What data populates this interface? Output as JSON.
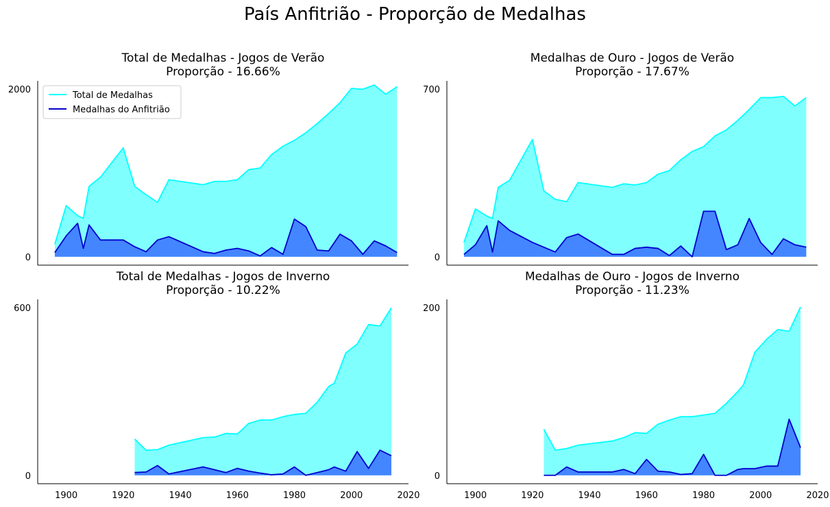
{
  "figure": {
    "title": "País Anfitrião - Proporção de Medalhas",
    "colors": {
      "total_line": "#00ffff",
      "total_fill": "#80ffff",
      "host_line": "#0000cc",
      "host_fill": "#4080ff"
    }
  },
  "chart_data": [
    {
      "type": "area",
      "title": "Total de Medalhas - Jogos de Verão",
      "subtitle": "Proporção - 16.66%",
      "xlim": [
        1890,
        2020
      ],
      "ylim": [
        -100,
        2100
      ],
      "yticks": [
        0,
        2000
      ],
      "show_xticks": false,
      "legend": {
        "placement": "top-left",
        "entries": [
          "Total de Medalhas",
          "Medalhas do Anfitrião"
        ]
      },
      "series": [
        {
          "name": "Total de Medalhas",
          "x": [
            1896,
            1900,
            1904,
            1906,
            1908,
            1912,
            1920,
            1924,
            1928,
            1932,
            1936,
            1948,
            1952,
            1956,
            1960,
            1964,
            1968,
            1972,
            1976,
            1980,
            1984,
            1988,
            1992,
            1996,
            2000,
            2004,
            2008,
            2012,
            2016
          ],
          "values": [
            150,
            610,
            490,
            460,
            840,
            950,
            1300,
            840,
            740,
            650,
            920,
            860,
            900,
            900,
            920,
            1040,
            1060,
            1220,
            1320,
            1390,
            1480,
            1590,
            1710,
            1840,
            2010,
            2000,
            2050,
            1940,
            2030
          ]
        },
        {
          "name": "Medalhas do Anfitrião",
          "x": [
            1896,
            1900,
            1904,
            1906,
            1908,
            1912,
            1920,
            1924,
            1928,
            1932,
            1936,
            1948,
            1952,
            1956,
            1960,
            1964,
            1968,
            1972,
            1976,
            1980,
            1984,
            1988,
            1992,
            1996,
            2000,
            2004,
            2008,
            2012,
            2016
          ],
          "values": [
            50,
            250,
            400,
            100,
            380,
            200,
            200,
            120,
            60,
            200,
            240,
            60,
            40,
            80,
            100,
            70,
            10,
            110,
            30,
            450,
            360,
            80,
            70,
            270,
            190,
            30,
            190,
            130,
            50
          ]
        }
      ]
    },
    {
      "type": "area",
      "title": "Medalhas de Ouro - Jogos de Verão",
      "subtitle": "Proporção - 17.67%",
      "xlim": [
        1890,
        2020
      ],
      "ylim": [
        -35,
        735
      ],
      "yticks": [
        0,
        700
      ],
      "show_xticks": false,
      "series": [
        {
          "name": "Total de Medalhas",
          "x": [
            1896,
            1900,
            1904,
            1906,
            1908,
            1912,
            1920,
            1924,
            1928,
            1932,
            1936,
            1948,
            1952,
            1956,
            1960,
            1964,
            1968,
            1972,
            1976,
            1980,
            1984,
            1988,
            1992,
            1996,
            2000,
            2004,
            2008,
            2012,
            2016
          ],
          "values": [
            60,
            200,
            170,
            160,
            290,
            320,
            490,
            275,
            240,
            230,
            310,
            290,
            305,
            300,
            310,
            345,
            360,
            405,
            440,
            460,
            505,
            530,
            570,
            615,
            665,
            665,
            670,
            630,
            665
          ]
        },
        {
          "name": "Medalhas do Anfitrião",
          "x": [
            1896,
            1900,
            1904,
            1906,
            1908,
            1912,
            1920,
            1924,
            1928,
            1932,
            1936,
            1948,
            1952,
            1956,
            1960,
            1964,
            1968,
            1972,
            1976,
            1980,
            1984,
            1988,
            1992,
            1996,
            2000,
            2004,
            2008,
            2012,
            2016
          ],
          "values": [
            10,
            50,
            130,
            20,
            150,
            110,
            60,
            40,
            20,
            80,
            95,
            10,
            10,
            35,
            40,
            35,
            5,
            45,
            0,
            190,
            190,
            30,
            50,
            160,
            60,
            10,
            75,
            50,
            40
          ]
        }
      ]
    },
    {
      "type": "area",
      "title": "Total de Medalhas - Jogos de Inverno",
      "subtitle": "Proporção - 10.22%",
      "xlim": [
        1890,
        2020
      ],
      "ylim": [
        -30,
        630
      ],
      "yticks": [
        0,
        600
      ],
      "xticks": [
        1900,
        1920,
        1940,
        1960,
        1980,
        2000,
        2020
      ],
      "show_xticks": true,
      "series": [
        {
          "name": "Total de Medalhas",
          "x": [
            1924,
            1928,
            1932,
            1936,
            1948,
            1952,
            1956,
            1960,
            1964,
            1968,
            1972,
            1976,
            1980,
            1984,
            1988,
            1992,
            1994,
            1998,
            2002,
            2006,
            2010,
            2014
          ],
          "values": [
            130,
            90,
            92,
            108,
            135,
            137,
            150,
            148,
            186,
            198,
            198,
            210,
            218,
            222,
            262,
            318,
            330,
            438,
            470,
            540,
            535,
            600
          ]
        },
        {
          "name": "Medalhas do Anfitrião",
          "x": [
            1924,
            1928,
            1932,
            1936,
            1948,
            1952,
            1956,
            1960,
            1964,
            1968,
            1972,
            1976,
            1980,
            1984,
            1988,
            1992,
            1994,
            1998,
            2002,
            2006,
            2010,
            2014
          ],
          "values": [
            10,
            12,
            35,
            5,
            30,
            20,
            10,
            25,
            15,
            8,
            2,
            5,
            30,
            0,
            10,
            20,
            30,
            15,
            85,
            25,
            90,
            70
          ]
        }
      ]
    },
    {
      "type": "area",
      "title": "Medalhas de Ouro - Jogos de Inverno",
      "subtitle": "Proporção - 11.23%",
      "xlim": [
        1890,
        2020
      ],
      "ylim": [
        -10,
        210
      ],
      "yticks": [
        0,
        200
      ],
      "xticks": [
        1900,
        1920,
        1940,
        1960,
        1980,
        2000,
        2020
      ],
      "show_xticks": true,
      "series": [
        {
          "name": "Total de Medalhas",
          "x": [
            1924,
            1928,
            1932,
            1936,
            1948,
            1952,
            1956,
            1960,
            1964,
            1968,
            1972,
            1976,
            1980,
            1984,
            1988,
            1992,
            1994,
            1998,
            2002,
            2006,
            2010,
            2014
          ],
          "values": [
            55,
            30,
            32,
            36,
            41,
            45,
            51,
            50,
            61,
            66,
            70,
            70,
            72,
            74,
            86,
            100,
            108,
            147,
            162,
            174,
            172,
            201
          ]
        },
        {
          "name": "Medalhas do Anfitrião",
          "x": [
            1924,
            1928,
            1932,
            1936,
            1948,
            1952,
            1956,
            1960,
            1964,
            1968,
            1972,
            1976,
            1980,
            1984,
            1988,
            1992,
            1994,
            1998,
            2002,
            2006,
            2010,
            2014
          ],
          "values": [
            0,
            0,
            10,
            4,
            4,
            7,
            2,
            19,
            5,
            4,
            1,
            2,
            25,
            0,
            0,
            7,
            8,
            8,
            11,
            11,
            67,
            33
          ]
        }
      ]
    }
  ]
}
